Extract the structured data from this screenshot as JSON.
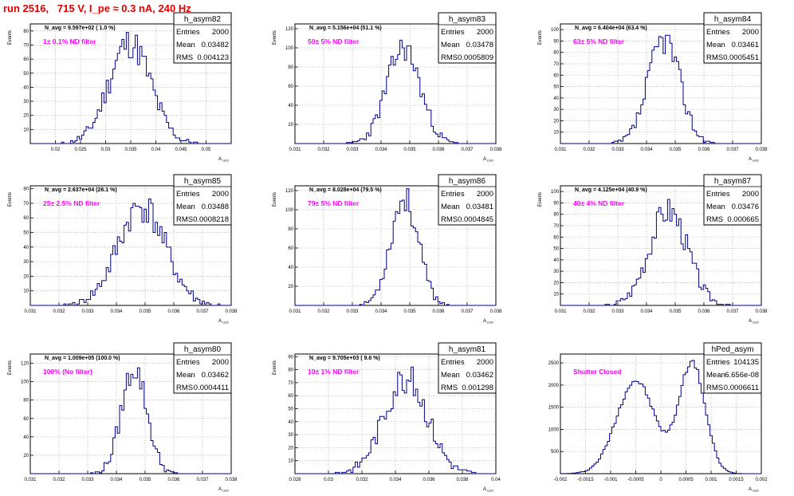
{
  "run_title": "run 2516,   715 V, I_pe ≈ 0.3 nA, 240 Hz",
  "colors": {
    "histogram": "#00008b",
    "label": "#ff00ff",
    "title": "#e00000",
    "grid": "#b0b0b0"
  },
  "stats_labels": {
    "entries": "Entries",
    "mean": "Mean",
    "rms": "RMS"
  },
  "chart_data": [
    {
      "type": "histogram",
      "name": "h_asym82",
      "navg": "N_avg = 9.597e+02 ( 1.0 %)",
      "label": "1± 0.1% ND filter",
      "stats": {
        "entries": "2000",
        "mean": "0.03482",
        "rms": "0.004123"
      },
      "xlim": [
        0.015,
        0.055
      ],
      "ylim": [
        0,
        85
      ],
      "xticks": [
        "0.02",
        "0.025",
        "0.03",
        "0.035",
        "0.04",
        "0.045",
        "0.05"
      ],
      "yticks": [
        "10",
        "20",
        "30",
        "40",
        "50",
        "60",
        "70",
        "80"
      ],
      "ylabel": "Events",
      "xlabel": "A_LED",
      "gauss": [
        {
          "mu": 0.03482,
          "sigma": 0.004123,
          "amp": 72
        }
      ],
      "seed": 11
    },
    {
      "type": "histogram",
      "name": "h_asym83",
      "navg": "N_avg = 5.156e+04 (51.1 %)",
      "label": "50± 5% ND filter",
      "stats": {
        "entries": "2000",
        "mean": "0.03478",
        "rms": "0.0005809"
      },
      "xlim": [
        0.031,
        0.038
      ],
      "ylim": [
        0,
        125
      ],
      "xticks": [
        "0.031",
        "0.032",
        "0.033",
        "0.034",
        "0.035",
        "0.036",
        "0.037",
        "0.038"
      ],
      "yticks": [
        "20",
        "40",
        "60",
        "80",
        "100",
        "120"
      ],
      "ylabel": "Events",
      "xlabel": "A_LED",
      "gauss": [
        {
          "mu": 0.03478,
          "sigma": 0.0005809,
          "amp": 100
        }
      ],
      "seed": 23
    },
    {
      "type": "histogram",
      "name": "h_asym84",
      "navg": "N_avg = 6.404e+04 (63.4 %)",
      "label": "63± 5% ND filter",
      "stats": {
        "entries": "2000",
        "mean": "0.03461",
        "rms": "0.0005451"
      },
      "xlim": [
        0.031,
        0.038
      ],
      "ylim": [
        0,
        105
      ],
      "xticks": [
        "0.031",
        "0.032",
        "0.033",
        "0.034",
        "0.035",
        "0.036",
        "0.037",
        "0.038"
      ],
      "yticks": [
        "10",
        "20",
        "30",
        "40",
        "50",
        "60",
        "70",
        "80",
        "90",
        "100"
      ],
      "ylabel": "Events",
      "xlabel": "A_LED",
      "gauss": [
        {
          "mu": 0.03461,
          "sigma": 0.0005451,
          "amp": 92
        }
      ],
      "seed": 37
    },
    {
      "type": "histogram",
      "name": "h_asym85",
      "navg": "N_avg = 2.637e+04 (26.1 %)",
      "label": "25± 2.5% ND filter",
      "stats": {
        "entries": "2000",
        "mean": "0.03488",
        "rms": "0.0008218"
      },
      "xlim": [
        0.031,
        0.038
      ],
      "ylim": [
        0,
        82
      ],
      "xticks": [
        "0.031",
        "0.032",
        "0.033",
        "0.034",
        "0.035",
        "0.036",
        "0.037",
        "0.038"
      ],
      "yticks": [
        "10",
        "20",
        "30",
        "40",
        "50",
        "60",
        "70",
        "80"
      ],
      "ylabel": "Events",
      "xlabel": "A_LED",
      "gauss": [
        {
          "mu": 0.03488,
          "sigma": 0.0008218,
          "amp": 68
        }
      ],
      "seed": 41
    },
    {
      "type": "histogram",
      "name": "h_asym86",
      "navg": "N_avg = 8.028e+04 (79.5 %)",
      "label": "79± 5% ND filter",
      "stats": {
        "entries": "2000",
        "mean": "0.03481",
        "rms": "0.0004845"
      },
      "xlim": [
        0.031,
        0.038
      ],
      "ylim": [
        0,
        125
      ],
      "xticks": [
        "0.031",
        "0.032",
        "0.033",
        "0.034",
        "0.035",
        "0.036",
        "0.037",
        "0.038"
      ],
      "yticks": [
        "20",
        "40",
        "60",
        "80",
        "100",
        "120"
      ],
      "ylabel": "Events",
      "xlabel": "A_LED",
      "gauss": [
        {
          "mu": 0.03481,
          "sigma": 0.0004845,
          "amp": 112
        }
      ],
      "seed": 53
    },
    {
      "type": "histogram",
      "name": "h_asym87",
      "navg": "N_avg = 4.125e+04 (40.9 %)",
      "label": "40± 4% ND filter",
      "stats": {
        "entries": "2000",
        "mean": "0.03476",
        "rms": "0.000665"
      },
      "xlim": [
        0.031,
        0.038
      ],
      "ylim": [
        0,
        105
      ],
      "xticks": [
        "0.031",
        "0.032",
        "0.033",
        "0.034",
        "0.035",
        "0.036",
        "0.037",
        "0.038"
      ],
      "yticks": [
        "10",
        "20",
        "30",
        "40",
        "50",
        "60",
        "70",
        "80",
        "90",
        "100"
      ],
      "ylabel": "Events",
      "xlabel": "A_LED",
      "gauss": [
        {
          "mu": 0.03476,
          "sigma": 0.000665,
          "amp": 84
        }
      ],
      "seed": 67
    },
    {
      "type": "histogram",
      "name": "h_asym80",
      "navg": "N_avg = 1.009e+05 (100.0 %)",
      "label": "100% (No filter)",
      "stats": {
        "entries": "2000",
        "mean": "0.03462",
        "rms": "0.0004411"
      },
      "xlim": [
        0.031,
        0.038
      ],
      "ylim": [
        0,
        130
      ],
      "xticks": [
        "0.031",
        "0.032",
        "0.033",
        "0.034",
        "0.035",
        "0.036",
        "0.037",
        "0.038"
      ],
      "yticks": [
        "20",
        "40",
        "60",
        "80",
        "100",
        "120"
      ],
      "ylabel": "Events",
      "xlabel": "A_LED",
      "gauss": [
        {
          "mu": 0.03462,
          "sigma": 0.0004411,
          "amp": 115
        }
      ],
      "seed": 79
    },
    {
      "type": "histogram",
      "name": "h_asym81",
      "navg": "N_avg = 9.705e+03 ( 9.6 %)",
      "label": "10± 1% ND filter",
      "stats": {
        "entries": "2000",
        "mean": "0.03462",
        "rms": "0.001298"
      },
      "xlim": [
        0.028,
        0.04
      ],
      "ylim": [
        0,
        92
      ],
      "xticks": [
        "0.028",
        "0.03",
        "0.032",
        "0.034",
        "0.036",
        "0.038",
        "0.04"
      ],
      "yticks": [
        "10",
        "20",
        "30",
        "40",
        "50",
        "60",
        "70",
        "80",
        "90"
      ],
      "ylabel": "Events",
      "xlabel": "A_LED",
      "gauss": [
        {
          "mu": 0.03462,
          "sigma": 0.001298,
          "amp": 74
        }
      ],
      "seed": 83
    },
    {
      "type": "histogram",
      "name": "hPed_asym",
      "navg": "",
      "label": "Shutter Closed",
      "stats": {
        "entries": "104135",
        "mean": "6.656e-08",
        "rms": "0.0006611"
      },
      "xlim": [
        -0.002,
        0.002
      ],
      "ylim": [
        0,
        2700
      ],
      "xticks": [
        "-0.002",
        "-0.0015",
        "-0.001",
        "-0.0005",
        "0",
        "0.0005",
        "0.001",
        "0.0015",
        "0.002"
      ],
      "yticks": [
        "500",
        "1000",
        "1500",
        "2000",
        "2500"
      ],
      "ylabel": "",
      "xlabel": "A_LED",
      "gauss": [
        {
          "mu": -0.0005,
          "sigma": 0.00038,
          "amp": 2100
        },
        {
          "mu": 0.00062,
          "sigma": 0.00026,
          "amp": 2500
        }
      ],
      "seed": 97
    }
  ]
}
